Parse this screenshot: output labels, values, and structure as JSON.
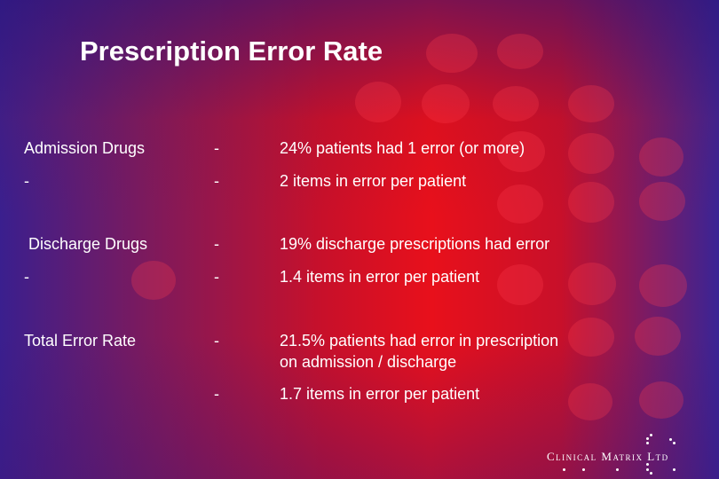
{
  "slide": {
    "title": "Prescription Error Rate"
  },
  "rows": [
    {
      "label": "Admission Drugs",
      "dash": "-",
      "text": "24% patients had 1 error (or more)"
    },
    {
      "label": "-",
      "dash": "-",
      "text": "2 items in error per patient"
    },
    {
      "label": " Discharge Drugs",
      "dash": "-",
      "text": "19% discharge prescriptions had error"
    },
    {
      "label": "-",
      "dash": "-",
      "text": "1.4 items in error per patient"
    },
    {
      "label": "Total Error Rate",
      "dash": "-",
      "text": "21.5% patients had error in prescription\non admission / discharge"
    },
    {
      "label": "",
      "dash": "-",
      "text": "1.7 items in error per patient"
    }
  ],
  "logo": {
    "text": "Clinical Matrix Ltd"
  }
}
